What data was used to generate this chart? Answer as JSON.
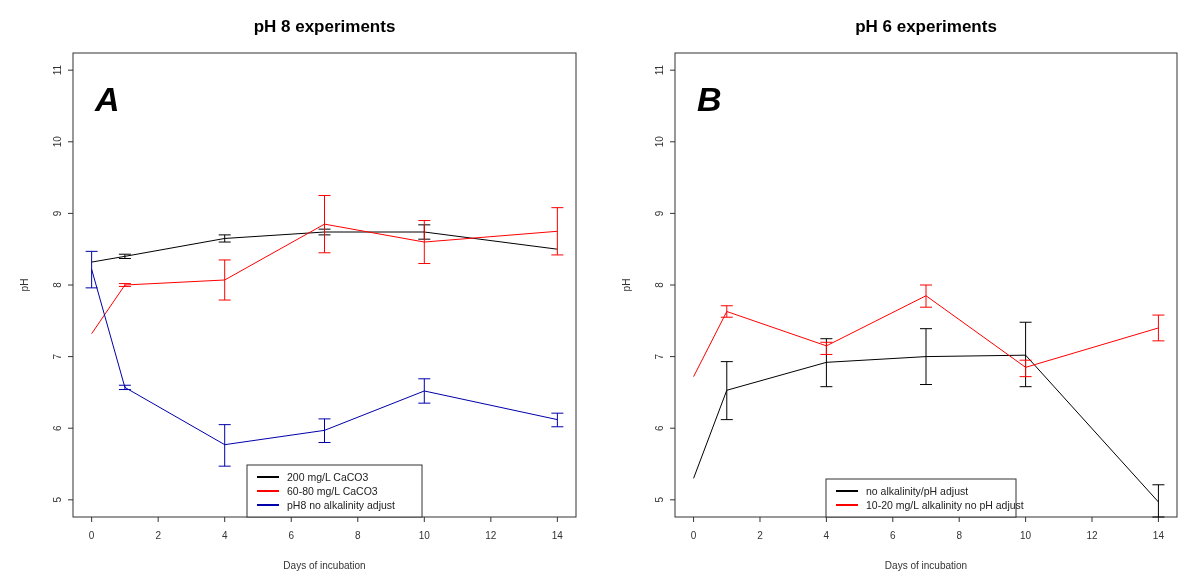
{
  "chart_data": [
    {
      "type": "line",
      "title": "pH 8 experiments",
      "xlabel": "Days of incubation",
      "ylabel": "pH",
      "annotations": [
        "A"
      ],
      "x": [
        0,
        1,
        4,
        7,
        10,
        14
      ],
      "xlim": [
        -0.56,
        14.56
      ],
      "xticks": [
        0,
        2,
        4,
        6,
        8,
        10,
        12,
        14
      ],
      "ylim": [
        4.76,
        11.24
      ],
      "yticks": [
        5,
        6,
        7,
        8,
        9,
        10,
        11
      ],
      "legend": "bottom",
      "marker": "none",
      "grid": false,
      "series": [
        {
          "name": "200 mg/L CaCO3",
          "color": "#000000",
          "values": [
            8.32,
            8.4,
            8.65,
            8.74,
            8.74,
            8.5
          ],
          "errors": [
            null,
            0.03,
            0.05,
            0.04,
            0.1,
            null
          ]
        },
        {
          "name": "60-80 mg/L CaCO3",
          "color": "#ff0000",
          "values": [
            7.32,
            8.0,
            8.07,
            8.85,
            8.6,
            8.75
          ],
          "errors": [
            null,
            0.02,
            [
              7.79,
              8.35
            ],
            [
              8.45,
              9.25
            ],
            [
              8.3,
              8.9
            ],
            [
              8.42,
              9.08
            ]
          ]
        },
        {
          "name": "pH8 no alkalinity adjust",
          "color": "#0000aa",
          "values": [
            8.22,
            6.57,
            5.77,
            5.97,
            6.52,
            6.12
          ],
          "errors": [
            [
              7.96,
              8.47
            ],
            0.03,
            [
              5.47,
              6.05
            ],
            [
              5.8,
              6.13
            ],
            [
              6.35,
              6.69
            ],
            [
              6.02,
              6.21
            ]
          ]
        }
      ]
    },
    {
      "type": "line",
      "title": "pH 6 experiments",
      "xlabel": "Days of incubation",
      "ylabel": "pH",
      "annotations": [
        "B"
      ],
      "x": [
        0,
        1,
        4,
        7,
        10,
        14
      ],
      "xlim": [
        -0.56,
        14.56
      ],
      "xticks": [
        0,
        2,
        4,
        6,
        8,
        10,
        12,
        14
      ],
      "ylim": [
        4.76,
        11.24
      ],
      "yticks": [
        5,
        6,
        7,
        8,
        9,
        10,
        11
      ],
      "legend": "bottom",
      "marker": "none",
      "grid": false,
      "series": [
        {
          "name": "no alkalinity/pH adjust",
          "color": "#000000",
          "values": [
            5.3,
            6.53,
            6.92,
            7.0,
            7.02,
            4.97
          ],
          "errors": [
            null,
            [
              6.12,
              6.93
            ],
            [
              6.58,
              7.25
            ],
            [
              6.61,
              7.39
            ],
            [
              6.58,
              7.48
            ],
            [
              4.76,
              5.21
            ]
          ]
        },
        {
          "name": "10-20 mg/L alkalinity no pH adjust",
          "color": "#ff0000",
          "values": [
            6.72,
            7.63,
            7.15,
            7.85,
            6.85,
            7.4
          ],
          "errors": [
            null,
            [
              7.55,
              7.71
            ],
            [
              7.03,
              7.2
            ],
            [
              7.69,
              8.0
            ],
            [
              6.72,
              6.95
            ],
            [
              7.22,
              7.58
            ]
          ]
        }
      ]
    }
  ]
}
